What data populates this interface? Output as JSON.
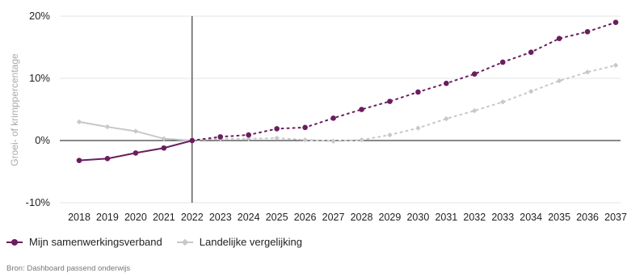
{
  "chart_data": {
    "type": "line",
    "title": "",
    "ylabel": "Groei- of krimppercentage",
    "xlabel": "",
    "ylim": [
      -10,
      20
    ],
    "yticks": [
      -10,
      0,
      10,
      20
    ],
    "ytick_labels": [
      "-10%",
      "0%",
      "10%",
      "20%"
    ],
    "x": [
      2018,
      2019,
      2020,
      2021,
      2022,
      2023,
      2024,
      2025,
      2026,
      2027,
      2028,
      2029,
      2030,
      2031,
      2032,
      2033,
      2034,
      2035,
      2036,
      2037
    ],
    "x_labels": [
      "2018",
      "2019",
      "2020",
      "2021",
      "2022",
      "2023",
      "2024",
      "2025",
      "2026",
      "2027",
      "2028",
      "2029",
      "2030",
      "2031",
      "2032",
      "2033",
      "2034",
      "2035",
      "2036",
      "2037"
    ],
    "reference_line_x": 2022,
    "projection_from": 2022,
    "grid": "horizontal",
    "legend_position": "bottom-left",
    "series": [
      {
        "name": "Mijn samenwerkingsverband",
        "color": "#6b1d5e",
        "marker": "circle",
        "values": [
          -3.2,
          -2.9,
          -2.0,
          -1.2,
          0.0,
          0.6,
          0.9,
          1.9,
          2.1,
          3.6,
          5.0,
          6.3,
          7.8,
          9.2,
          10.7,
          12.6,
          14.2,
          16.4,
          17.5,
          19.0
        ]
      },
      {
        "name": "Landelijke vergelijking",
        "color": "#c8c8c8",
        "marker": "diamond",
        "values": [
          3.0,
          2.2,
          1.5,
          0.3,
          0.0,
          0.3,
          0.3,
          0.4,
          0.1,
          -0.1,
          0.1,
          0.9,
          2.0,
          3.5,
          4.8,
          6.2,
          7.9,
          9.6,
          11.0,
          12.1
        ]
      }
    ]
  },
  "footer": {
    "source": "Bron: Dashboard passend onderwijs"
  }
}
